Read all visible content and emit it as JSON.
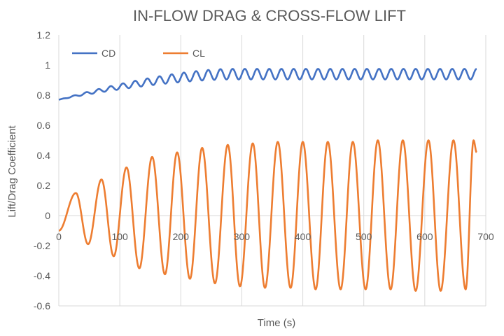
{
  "chart_data": {
    "type": "line",
    "title": "IN-FLOW DRAG & CROSS-FLOW LIFT",
    "xlabel": "Time (s)",
    "ylabel": "Lift/Drag Coefficient",
    "xlim": [
      0,
      700
    ],
    "ylim": [
      -0.6,
      1.2
    ],
    "xticks": [
      0,
      100,
      200,
      300,
      400,
      500,
      600,
      700
    ],
    "yticks": [
      -0.6,
      -0.4,
      -0.2,
      0,
      0.2,
      0.4,
      0.6,
      0.8,
      1,
      1.2
    ],
    "xtick_labels": [
      "0",
      "100",
      "200",
      "300",
      "400",
      "500",
      "600",
      "700"
    ],
    "ytick_labels": [
      "-0.6",
      "-0.4",
      "-0.2",
      "0",
      "0.2",
      "0.4",
      "0.6",
      "0.8",
      "1",
      "1.2"
    ],
    "grid": "vertical",
    "legend_position": "top-left",
    "series": [
      {
        "name": "CD",
        "color": "#4472C4",
        "x_range": [
          0,
          685
        ],
        "period": 20,
        "mean_start": 0.77,
        "mean_end": 0.94,
        "amp_start": 0.0,
        "amp_end": 0.035,
        "ramp_time": 280
      },
      {
        "name": "CL",
        "color": "#ED7D31",
        "x_range": [
          0,
          685
        ],
        "period": 41,
        "start_value": -0.1,
        "peaks": [
          [
            0,
            -0.1
          ],
          [
            28,
            0.15
          ],
          [
            48,
            -0.19
          ],
          [
            70,
            0.24
          ],
          [
            90,
            -0.27
          ],
          [
            111,
            0.32
          ],
          [
            132,
            -0.35
          ],
          [
            153,
            0.39
          ],
          [
            174,
            -0.39
          ],
          [
            194,
            0.42
          ],
          [
            215,
            -0.42
          ],
          [
            235,
            0.45
          ],
          [
            256,
            -0.45
          ],
          [
            277,
            0.47
          ],
          [
            297,
            -0.47
          ],
          [
            318,
            0.48
          ],
          [
            338,
            -0.48
          ],
          [
            359,
            0.49
          ],
          [
            380,
            -0.48
          ],
          [
            400,
            0.49
          ],
          [
            421,
            -0.49
          ],
          [
            441,
            0.49
          ],
          [
            462,
            -0.49
          ],
          [
            482,
            0.49
          ],
          [
            503,
            -0.49
          ],
          [
            523,
            0.5
          ],
          [
            544,
            -0.49
          ],
          [
            564,
            0.5
          ],
          [
            585,
            -0.5
          ],
          [
            606,
            0.5
          ],
          [
            626,
            -0.5
          ],
          [
            647,
            0.5
          ],
          [
            667,
            -0.49
          ],
          [
            680,
            0.5
          ],
          [
            685,
            0.42
          ]
        ]
      }
    ]
  }
}
